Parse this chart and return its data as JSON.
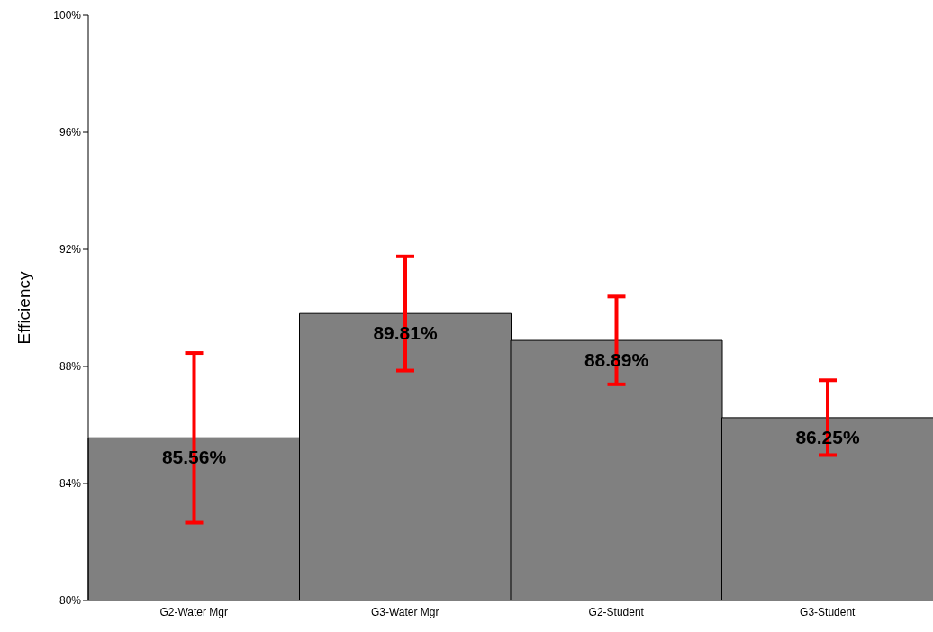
{
  "chart_data": {
    "type": "bar",
    "ylabel": "Efficiency",
    "categories": [
      "G2-Water Mgr",
      "G3-Water Mgr",
      "G2-Student",
      "G3-Student"
    ],
    "values": [
      85.56,
      89.81,
      88.89,
      86.25
    ],
    "value_labels": [
      "85.56%",
      "89.81%",
      "88.89%",
      "86.25%"
    ],
    "errors": [
      2.9,
      1.95,
      1.5,
      1.28
    ],
    "color": "#808080",
    "ylim": [
      80,
      100
    ],
    "yticks": [
      {
        "value": 80,
        "label": "80%"
      },
      {
        "value": 84,
        "label": "84%"
      },
      {
        "value": 88,
        "label": "88%"
      },
      {
        "value": 92,
        "label": "92%"
      },
      {
        "value": 96,
        "label": "96%"
      },
      {
        "value": 100,
        "label": "100%"
      }
    ],
    "grid": false,
    "legend": false
  }
}
